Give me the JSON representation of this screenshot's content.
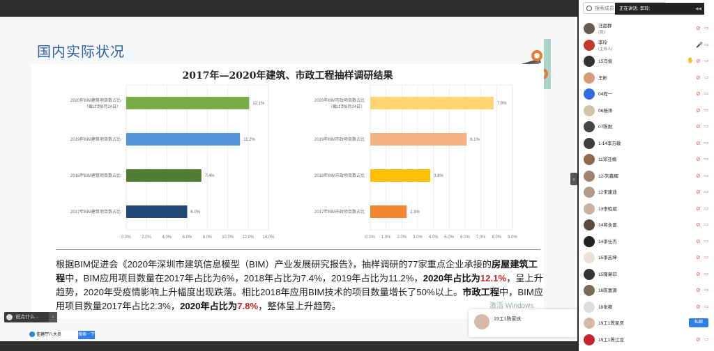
{
  "slide": {
    "title": "国内实际状况",
    "chart_heading": "2017年—2020年建筑、市政工程抽样调研结果",
    "paragraph": {
      "p1": "根据BIM促进会《2020年深圳市建筑信息模型（BIM）产业发展研究报告》，抽样调研的77家重点企业承接的",
      "b1": "房屋建筑工程",
      "p2": "中，BIM应用项目数量在2017年占比为6%，2018年占比为7.4%，2019年占比为11.2%，",
      "b2": "2020年占比为",
      "r1": "12.1%",
      "p3": "，呈上升趋势，2020年受疫情影响上升幅度出现跌落。相比2018年应用BIM技术的项目数量增长了50%以上。",
      "b3": "市政工程",
      "p4": "中，BIM应用项目数量2017年占比2.3%，",
      "b4": "2020年占比为",
      "r2": "7.8%",
      "p5": "，整体呈上升趋势。"
    },
    "watermark": "激活 Windows"
  },
  "chart_data": [
    {
      "type": "bar",
      "orientation": "horizontal",
      "categories": [
        "2020年BIM建筑项目数占比（截止到8月24日）",
        "2019年BIM建筑项目数占比",
        "2018年BIM建筑项目数占比",
        "2017年BIM建筑项目数占比"
      ],
      "category_lines": [
        [
          "2020年BIM建筑项目数占比",
          "（截止到8月24日）"
        ],
        [
          "2019年BIM建筑项目数占比"
        ],
        [
          "2018年BIM建筑项目数占比"
        ],
        [
          "2017年BIM建筑项目数占比"
        ]
      ],
      "values": [
        12.1,
        11.2,
        7.4,
        6.0
      ],
      "value_labels": [
        "12.1%",
        "11.2%",
        "7.4%",
        "6.0%"
      ],
      "colors": [
        "#77ac46",
        "#5595d7",
        "#527c36",
        "#23497a"
      ],
      "xlim": [
        0,
        14
      ],
      "ticks": [
        "0.0%",
        "2.0%",
        "4.0%",
        "6.0%",
        "8.0%",
        "10.0%",
        "12.0%",
        "14.0%"
      ],
      "grid": true
    },
    {
      "type": "bar",
      "orientation": "horizontal",
      "categories": [
        "2020年BIM市政项目数占比（截止到8月24日）",
        "2019年BIM市政项目数占比",
        "2018年BIM市政项目数占比",
        "2017年BIM市政项目数占比"
      ],
      "category_lines": [
        [
          "2020年BIM市政项目数占比",
          "（截止到8月24日）"
        ],
        [
          "2019年BIM市政项目数占比"
        ],
        [
          "2018年BIM市政项目数占比"
        ],
        [
          "2017年BIM市政项目数占比"
        ]
      ],
      "values": [
        7.8,
        6.1,
        3.8,
        2.3
      ],
      "value_labels": [
        "7.8%",
        "6.1%",
        "3.8%",
        "2.3%"
      ],
      "colors": [
        "#fdd56f",
        "#f4b183",
        "#ffc000",
        "#f48533"
      ],
      "xlim": [
        0,
        9
      ],
      "ticks": [
        "0.0%",
        "1.0%",
        "2.0%",
        "3.0%",
        "4.0%",
        "5.0%",
        "6.0%",
        "7.0%",
        "8.0%",
        "9.0%"
      ],
      "grid": true
    }
  ],
  "toast": {
    "name": "19工1陈家庆"
  },
  "chat": {
    "placeholder": "说点什么..."
  },
  "taskbar": {
    "title": "佳建厅八大员",
    "button": "搜索一下"
  },
  "panel": {
    "search_placeholder": "搜索成员",
    "speaking": "正在讲话: 李玲;",
    "participants": [
      {
        "name": "汪超群",
        "sub": "(我)",
        "color": "#6b5a4e"
      },
      {
        "name": "李玲",
        "sub": "(主持人)",
        "color": "#c0392b",
        "host": true
      },
      {
        "name": "15冯俊",
        "color": "#333333",
        "hand": true
      },
      {
        "name": "王彬",
        "color": "#d89a7a"
      },
      {
        "name": "04程一",
        "color": "#2f6de0"
      },
      {
        "name": "06杨洋",
        "color": "#d2c2a8"
      },
      {
        "name": "07陈耐",
        "color": "#444444"
      },
      {
        "name": "1-14李万敏",
        "color": "#3d3d3d"
      },
      {
        "name": "11邓亚楠",
        "color": "#8a6a50"
      },
      {
        "name": "12-刘鑫辉",
        "color": "#a08470"
      },
      {
        "name": "12宋建迪",
        "color": "#b09a88"
      },
      {
        "name": "13李昭斌",
        "color": "#c9b3a0"
      },
      {
        "name": "14蒋永富",
        "color": "#5a4a40"
      },
      {
        "name": "14李仕杰",
        "color": "#222222"
      },
      {
        "name": "15李志坤",
        "color": "#e8e2d8"
      },
      {
        "name": "15隆章印",
        "color": "#333333"
      },
      {
        "name": "16陈富源",
        "color": "#7a6a5a"
      },
      {
        "name": "18张艳",
        "color": "#dddddd"
      },
      {
        "name": "19工1陈家庆",
        "color": "#d8b8a8",
        "pm": "私聊"
      },
      {
        "name": "19工1陈江龙",
        "color": "#c0262b"
      }
    ]
  }
}
